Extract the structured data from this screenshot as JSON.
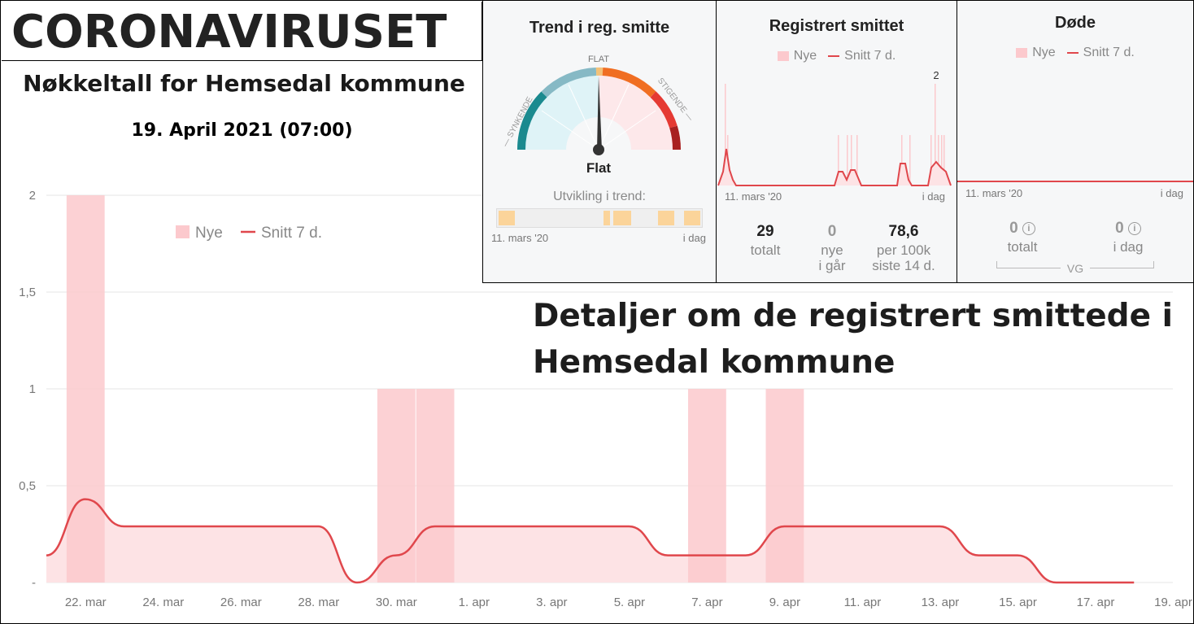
{
  "header": {
    "brand": "CORONAVIRUSET",
    "title": "Nøkkeltall for Hemsedal kommune",
    "date": "19. April 2021 (07:00)",
    "details_line1": "Detaljer om de registrert smittede i",
    "details_line2": "Hemsedal kommune"
  },
  "legend": {
    "new": "Nye",
    "avg": "Snitt 7 d."
  },
  "colors": {
    "bar": "#fcc9cd",
    "line": "#e0474c",
    "area": "#fde3e5",
    "grid": "#e6e6e6"
  },
  "trend_panel": {
    "title": "Trend i reg. smitte",
    "gauge_labels": {
      "left": "— SYNKENDE",
      "top": "FLAT",
      "right": "STIGENDE —"
    },
    "value": "Flat",
    "dev_label": "Utvikling i trend:",
    "x_start": "11. mars '20",
    "x_end": "i dag"
  },
  "registered_panel": {
    "title": "Registrert smittet",
    "peak_label": "2",
    "x_start": "11. mars '20",
    "x_end": "i dag",
    "stats": [
      {
        "value": "29",
        "label1": "totalt",
        "label2": ""
      },
      {
        "value": "0",
        "label1": "nye",
        "label2": "i går"
      },
      {
        "value": "78,6",
        "label1": "per 100k",
        "label2": "siste 14 d."
      }
    ]
  },
  "deaths_panel": {
    "title": "Døde",
    "x_start": "11. mars '20",
    "x_end": "i dag",
    "stats": [
      {
        "value": "0",
        "label": "totalt"
      },
      {
        "value": "0",
        "label": "i dag"
      }
    ],
    "source": "VG"
  },
  "chart_data": {
    "type": "bar",
    "title": "",
    "x_labels": [
      "22. mar",
      "24. mar",
      "26. mar",
      "28. mar",
      "30. mar",
      "1. apr",
      "3. apr",
      "5. apr",
      "7. apr",
      "9. apr",
      "11. apr",
      "13. apr",
      "15. apr",
      "17. apr",
      "19. apr"
    ],
    "y_ticks": [
      "-",
      "0,5",
      "1",
      "1,5",
      "2"
    ],
    "ylim": [
      0,
      2
    ],
    "legend_position": "top",
    "series": [
      {
        "name": "Nye",
        "type": "bar",
        "bars": [
          {
            "date": "22. mar",
            "value": 2
          },
          {
            "date": "30. mar",
            "value": 1
          },
          {
            "date": "31. mar",
            "value": 1
          },
          {
            "date": "7. apr",
            "value": 1
          },
          {
            "date": "9. apr",
            "value": 1
          }
        ]
      },
      {
        "name": "Snitt 7 d.",
        "type": "line",
        "points": [
          [
            "21. mar",
            0.14
          ],
          [
            "22. mar",
            0.43
          ],
          [
            "23. mar",
            0.29
          ],
          [
            "24. mar",
            0.29
          ],
          [
            "25. mar",
            0.29
          ],
          [
            "26. mar",
            0.29
          ],
          [
            "27. mar",
            0.29
          ],
          [
            "28. mar",
            0.29
          ],
          [
            "29. mar",
            0.0
          ],
          [
            "30. mar",
            0.14
          ],
          [
            "31. mar",
            0.29
          ],
          [
            "1. apr",
            0.29
          ],
          [
            "2. apr",
            0.29
          ],
          [
            "3. apr",
            0.29
          ],
          [
            "4. apr",
            0.29
          ],
          [
            "5. apr",
            0.29
          ],
          [
            "6. apr",
            0.14
          ],
          [
            "7. apr",
            0.14
          ],
          [
            "8. apr",
            0.14
          ],
          [
            "9. apr",
            0.29
          ],
          [
            "10. apr",
            0.29
          ],
          [
            "11. apr",
            0.29
          ],
          [
            "12. apr",
            0.29
          ],
          [
            "13. apr",
            0.29
          ],
          [
            "14. apr",
            0.14
          ],
          [
            "15. apr",
            0.14
          ],
          [
            "16. apr",
            0.0
          ],
          [
            "17. apr",
            0.0
          ],
          [
            "18. apr",
            0.0
          ]
        ]
      }
    ]
  }
}
